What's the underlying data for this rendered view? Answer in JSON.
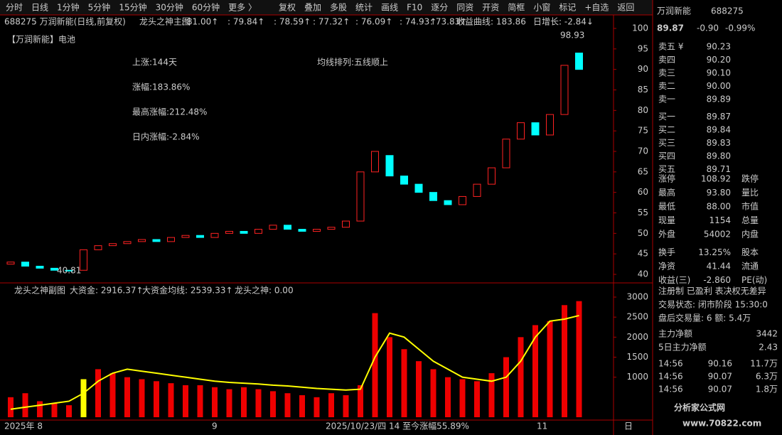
{
  "toolbar": {
    "left": [
      "分时",
      "日线",
      "1分钟",
      "5分钟",
      "15分钟",
      "30分钟",
      "60分钟",
      "更多 〉"
    ],
    "right": [
      "复权",
      "叠加",
      "多股",
      "统计",
      "画线",
      "F10",
      "逐分",
      "同资",
      "开资",
      "简框",
      "小窗",
      "标记",
      "+自选",
      "返回"
    ]
  },
  "main": {
    "header": [
      "688275 万润新能(日线,前复权)",
      "龙头之神主图",
      ": 81.00↑",
      ": 79.84↑",
      ": 78.59↑",
      ": 77.32↑",
      ": 76.09↑",
      ": 74.93↑",
      ": 73.83↑",
      "收益曲线: 183.86",
      "日增长: -2.84↓"
    ],
    "sector": "【万润新能】电池",
    "notes": [
      "上涨:144天",
      "涨幅:183.86%",
      "最高涨幅:212.48%",
      "日内涨幅:-2.84%"
    ],
    "trend": "均线排列:五线顺上",
    "high_label": "98.93",
    "low_label": "40.81",
    "ylim": [
      40,
      100
    ],
    "yticks": [
      40,
      45,
      50,
      55,
      60,
      65,
      70,
      75,
      80,
      85,
      90,
      95,
      100
    ],
    "open": [
      42.5,
      43,
      42,
      41.5,
      41,
      41,
      46,
      47,
      47.5,
      48,
      48.5,
      48,
      49,
      49.5,
      49,
      50,
      50.5,
      50,
      51,
      52,
      51,
      50.5,
      51,
      51.5,
      53,
      65,
      69,
      64,
      62,
      60,
      58,
      57,
      59,
      62,
      66,
      73,
      77,
      74,
      79,
      94
    ],
    "close": [
      43,
      42,
      41.5,
      41,
      40.8,
      46,
      47,
      47.5,
      48,
      48.5,
      48,
      49,
      49.5,
      49,
      50,
      50.5,
      50,
      51,
      52,
      51,
      50.5,
      51,
      51.5,
      53,
      65,
      70,
      64,
      62,
      60,
      58,
      57,
      59,
      62,
      66,
      73,
      77,
      74,
      79,
      91,
      90
    ]
  },
  "sub": {
    "header": [
      "龙头之神副图",
      "大资金: 2916.37↑",
      "大资金均线: 2539.33↑",
      "龙头之神: 0.00"
    ],
    "ylim": [
      0,
      3000
    ],
    "yticks": [
      1000,
      1500,
      2000,
      2500,
      3000
    ],
    "volume": [
      500,
      600,
      400,
      350,
      300,
      950,
      1200,
      1100,
      1000,
      950,
      900,
      850,
      800,
      800,
      750,
      700,
      750,
      700,
      650,
      600,
      550,
      500,
      600,
      550,
      800,
      2600,
      2000,
      1700,
      1400,
      1200,
      1000,
      950,
      900,
      1100,
      1500,
      2000,
      2300,
      2400,
      2800,
      2900
    ],
    "average": [
      200,
      250,
      300,
      350,
      400,
      600,
      900,
      1100,
      1200,
      1150,
      1100,
      1050,
      1000,
      950,
      900,
      870,
      850,
      830,
      800,
      780,
      750,
      720,
      700,
      680,
      700,
      1500,
      2100,
      2000,
      1700,
      1400,
      1200,
      1000,
      950,
      900,
      1000,
      1400,
      2000,
      2400,
      2450,
      2540
    ]
  },
  "dates": [
    "2025年 8",
    "9",
    "2025/10/23/四 14 至今涨幅55.89%",
    "11",
    "日"
  ],
  "quote": {
    "name": "万润新能",
    "code": "688275",
    "price": "89.87",
    "change": "-0.90",
    "pct": "-0.99%",
    "book": [
      [
        "卖五 ¥",
        "90.23"
      ],
      [
        "卖四",
        "90.20"
      ],
      [
        "卖三",
        "90.10"
      ],
      [
        "卖二",
        "90.00"
      ],
      [
        "卖一",
        "89.89"
      ],
      [
        "买一",
        "89.87"
      ],
      [
        "买二",
        "89.84"
      ],
      [
        "买三",
        "89.83"
      ],
      [
        "买四",
        "89.80"
      ],
      [
        "买五",
        "89.71"
      ]
    ],
    "stats": [
      [
        "涨停",
        "108.92",
        "跌停"
      ],
      [
        "最高",
        "93.80",
        "量比"
      ],
      [
        "最低",
        "88.00",
        "市值"
      ],
      [
        "现量",
        "1154",
        "总量"
      ],
      [
        "外盘",
        "54002",
        "内盘"
      ],
      [
        "换手",
        "13.25%",
        "股本"
      ],
      [
        "净资",
        "41.44",
        "流通"
      ],
      [
        "收益(三)",
        "-2.860",
        "PE(动)"
      ]
    ],
    "info": [
      "注册制 已盈利 表决权无差异",
      "交易状态: 闭市阶段 15:30:0",
      "盘后交易量: 6  额: 5.4万"
    ],
    "flow": [
      [
        "主力净额",
        "3442"
      ],
      [
        "5日主力净额",
        "2.43"
      ]
    ],
    "ticks": [
      [
        "14:56",
        "90.16",
        "11.7万"
      ],
      [
        "14:56",
        "90.07",
        "6.3万"
      ],
      [
        "14:56",
        "90.07",
        "1.8万"
      ]
    ]
  },
  "logo": [
    "分析家公式网",
    "www.70822.com"
  ]
}
